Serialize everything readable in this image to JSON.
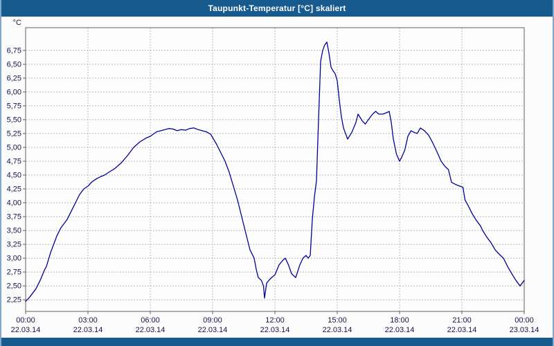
{
  "title": "Taupunkt-Temperatur [°C] skaliert",
  "colors": {
    "titlebar": "#175a8e",
    "frame": "#175a8e",
    "line": "#000099",
    "grid": "#b8b8b8",
    "plot_border": "#606060",
    "plot_bg": "#fdfdfd",
    "label": "#15154a"
  },
  "chart_data": {
    "type": "line",
    "title": "Taupunkt-Temperatur [°C] skaliert",
    "xlabel": "",
    "ylabel": "°C",
    "grid": true,
    "legend": false,
    "xlim": [
      0,
      24
    ],
    "ylim": [
      2.04,
      7.16
    ],
    "y_ticks": [
      2.25,
      2.5,
      2.75,
      3.0,
      3.25,
      3.5,
      3.75,
      4.0,
      4.25,
      4.5,
      4.75,
      5.0,
      5.25,
      5.5,
      5.75,
      6.0,
      6.25,
      6.5,
      6.75
    ],
    "y_tick_labels": [
      "2,25",
      "2,50",
      "2,75",
      "3,00",
      "3,25",
      "3,50",
      "3,75",
      "4,00",
      "4,25",
      "4,50",
      "4,75",
      "5,00",
      "5,25",
      "5,50",
      "5,75",
      "6,00",
      "6,25",
      "6,50",
      "6,75"
    ],
    "x_ticks": [
      0,
      3,
      6,
      9,
      12,
      15,
      18,
      21,
      24
    ],
    "x_tick_labels": [
      "00:00",
      "03:00",
      "06:00",
      "09:00",
      "12:00",
      "15:00",
      "18:00",
      "21:00",
      "00:00"
    ],
    "x_date_labels": [
      "22.03.14",
      "22.03.14",
      "22.03.14",
      "22.03.14",
      "22.03.14",
      "22.03.14",
      "22.03.14",
      "22.03.14",
      "23.03.14"
    ],
    "series_name": "Taupunkt-Temperatur",
    "points": [
      [
        0,
        2.22
      ],
      [
        0.2,
        2.3
      ],
      [
        0.4,
        2.4
      ],
      [
        0.5,
        2.45
      ],
      [
        0.7,
        2.6
      ],
      [
        0.9,
        2.78
      ],
      [
        1,
        2.85
      ],
      [
        1.2,
        3.1
      ],
      [
        1.4,
        3.3
      ],
      [
        1.5,
        3.4
      ],
      [
        1.7,
        3.55
      ],
      [
        1.9,
        3.65
      ],
      [
        2,
        3.7
      ],
      [
        2.2,
        3.85
      ],
      [
        2.4,
        4.0
      ],
      [
        2.6,
        4.15
      ],
      [
        2.8,
        4.25
      ],
      [
        3,
        4.3
      ],
      [
        3.2,
        4.38
      ],
      [
        3.4,
        4.43
      ],
      [
        3.6,
        4.47
      ],
      [
        3.8,
        4.5
      ],
      [
        4,
        4.55
      ],
      [
        4.3,
        4.62
      ],
      [
        4.6,
        4.72
      ],
      [
        4.9,
        4.85
      ],
      [
        5.2,
        5.0
      ],
      [
        5.5,
        5.1
      ],
      [
        5.8,
        5.17
      ],
      [
        6,
        5.2
      ],
      [
        6.3,
        5.28
      ],
      [
        6.6,
        5.31
      ],
      [
        6.9,
        5.34
      ],
      [
        7.1,
        5.33
      ],
      [
        7.3,
        5.3
      ],
      [
        7.5,
        5.32
      ],
      [
        7.7,
        5.31
      ],
      [
        7.9,
        5.34
      ],
      [
        8.1,
        5.35
      ],
      [
        8.3,
        5.32
      ],
      [
        8.5,
        5.3
      ],
      [
        8.7,
        5.28
      ],
      [
        8.9,
        5.24
      ],
      [
        9,
        5.18
      ],
      [
        9.2,
        5.05
      ],
      [
        9.4,
        4.9
      ],
      [
        9.6,
        4.75
      ],
      [
        9.8,
        4.55
      ],
      [
        10,
        4.3
      ],
      [
        10.2,
        4.05
      ],
      [
        10.4,
        3.75
      ],
      [
        10.6,
        3.45
      ],
      [
        10.8,
        3.15
      ],
      [
        11,
        3.0
      ],
      [
        11.1,
        2.8
      ],
      [
        11.2,
        2.65
      ],
      [
        11.35,
        2.6
      ],
      [
        11.45,
        2.5
      ],
      [
        11.5,
        2.28
      ],
      [
        11.6,
        2.55
      ],
      [
        11.75,
        2.62
      ],
      [
        11.9,
        2.67
      ],
      [
        12,
        2.7
      ],
      [
        12.2,
        2.88
      ],
      [
        12.4,
        2.97
      ],
      [
        12.5,
        3.0
      ],
      [
        12.65,
        2.88
      ],
      [
        12.8,
        2.72
      ],
      [
        13,
        2.65
      ],
      [
        13.2,
        2.88
      ],
      [
        13.35,
        3.0
      ],
      [
        13.5,
        3.05
      ],
      [
        13.6,
        3.0
      ],
      [
        13.7,
        3.05
      ],
      [
        13.8,
        3.7
      ],
      [
        13.9,
        4.1
      ],
      [
        14,
        4.4
      ],
      [
        14.1,
        5.5
      ],
      [
        14.2,
        6.55
      ],
      [
        14.3,
        6.75
      ],
      [
        14.4,
        6.85
      ],
      [
        14.5,
        6.9
      ],
      [
        14.6,
        6.7
      ],
      [
        14.7,
        6.45
      ],
      [
        14.8,
        6.38
      ],
      [
        14.9,
        6.33
      ],
      [
        15,
        6.2
      ],
      [
        15.1,
        5.85
      ],
      [
        15.2,
        5.55
      ],
      [
        15.3,
        5.35
      ],
      [
        15.5,
        5.15
      ],
      [
        15.7,
        5.27
      ],
      [
        15.9,
        5.45
      ],
      [
        16,
        5.6
      ],
      [
        16.2,
        5.48
      ],
      [
        16.35,
        5.42
      ],
      [
        16.5,
        5.5
      ],
      [
        16.7,
        5.6
      ],
      [
        16.85,
        5.65
      ],
      [
        17,
        5.6
      ],
      [
        17.2,
        5.6
      ],
      [
        17.4,
        5.63
      ],
      [
        17.5,
        5.65
      ],
      [
        17.6,
        5.45
      ],
      [
        17.7,
        5.15
      ],
      [
        17.85,
        4.88
      ],
      [
        18,
        4.75
      ],
      [
        18.1,
        4.82
      ],
      [
        18.25,
        4.95
      ],
      [
        18.4,
        5.2
      ],
      [
        18.55,
        5.3
      ],
      [
        18.7,
        5.27
      ],
      [
        18.85,
        5.25
      ],
      [
        19,
        5.35
      ],
      [
        19.2,
        5.3
      ],
      [
        19.4,
        5.22
      ],
      [
        19.6,
        5.08
      ],
      [
        19.8,
        4.92
      ],
      [
        20,
        4.75
      ],
      [
        20.2,
        4.65
      ],
      [
        20.35,
        4.6
      ],
      [
        20.5,
        4.37
      ],
      [
        20.7,
        4.33
      ],
      [
        20.9,
        4.3
      ],
      [
        21.05,
        4.28
      ],
      [
        21.15,
        4.05
      ],
      [
        21.3,
        3.95
      ],
      [
        21.5,
        3.8
      ],
      [
        21.7,
        3.68
      ],
      [
        21.9,
        3.58
      ],
      [
        22,
        3.5
      ],
      [
        22.2,
        3.38
      ],
      [
        22.4,
        3.28
      ],
      [
        22.6,
        3.15
      ],
      [
        22.8,
        3.07
      ],
      [
        23,
        3.0
      ],
      [
        23.2,
        2.85
      ],
      [
        23.4,
        2.72
      ],
      [
        23.6,
        2.6
      ],
      [
        23.8,
        2.5
      ],
      [
        24,
        2.6
      ]
    ]
  }
}
